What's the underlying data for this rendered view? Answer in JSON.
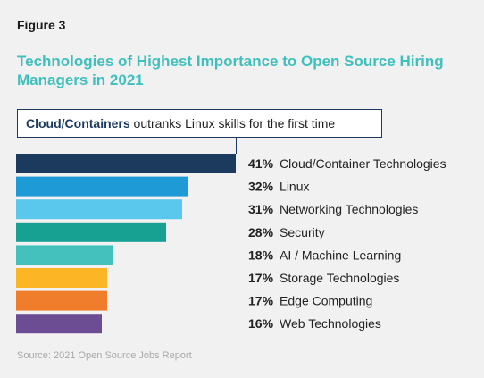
{
  "figure_label": "Figure 3",
  "callout": {
    "bold": "Cloud/Containers",
    "rest": " outranks Linux skills for the first time"
  },
  "source": "Source: 2021 Open Source Jobs Report",
  "chart_data": {
    "type": "bar",
    "orientation": "horizontal",
    "title": "Technologies of Highest Importance to Open Source Hiring Managers in 2021",
    "categories": [
      "Cloud/Container Technologies",
      "Linux",
      "Networking Technologies",
      "Security",
      "AI / Machine Learning",
      "Storage Technologies",
      "Edge Computing",
      "Web Technologies"
    ],
    "values": [
      41,
      32,
      31,
      28,
      18,
      17,
      17,
      16
    ],
    "value_labels": [
      "41%",
      "32%",
      "31%",
      "28%",
      "18%",
      "17%",
      "17%",
      "16%"
    ],
    "colors": [
      "#1b3a5e",
      "#1e9ad6",
      "#5ac8ec",
      "#17a192",
      "#45c1bd",
      "#fcb625",
      "#ef7d2b",
      "#6c4c93"
    ],
    "xlim": [
      0,
      41
    ],
    "grid": false,
    "legend": "none"
  }
}
